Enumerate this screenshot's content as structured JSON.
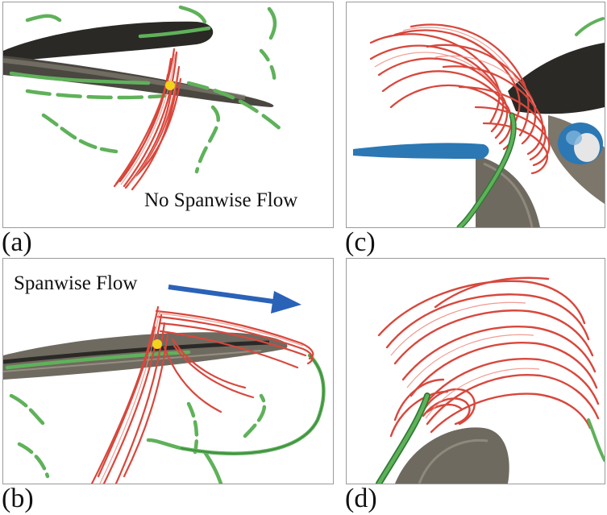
{
  "panels": [
    {
      "id": "a",
      "label": "(a)",
      "caption": "No Spanwise Flow"
    },
    {
      "id": "b",
      "label": "(b)",
      "caption": "Spanwise Flow"
    },
    {
      "id": "c",
      "label": "(c)",
      "caption": ""
    },
    {
      "id": "d",
      "label": "(d)",
      "caption": ""
    }
  ],
  "colors": {
    "wing_dark": "#2a2926",
    "wing_gray": "#6f6a60",
    "vortex_red": "#d8473c",
    "vortex_red_light": "#ef8a80",
    "tube_green": "#5fb15a",
    "tube_green_dark": "#2f7a35",
    "marker_yellow": "#f3d21c",
    "arrow_blue": "#2a62b8",
    "body_blue": "#2b78b4"
  }
}
